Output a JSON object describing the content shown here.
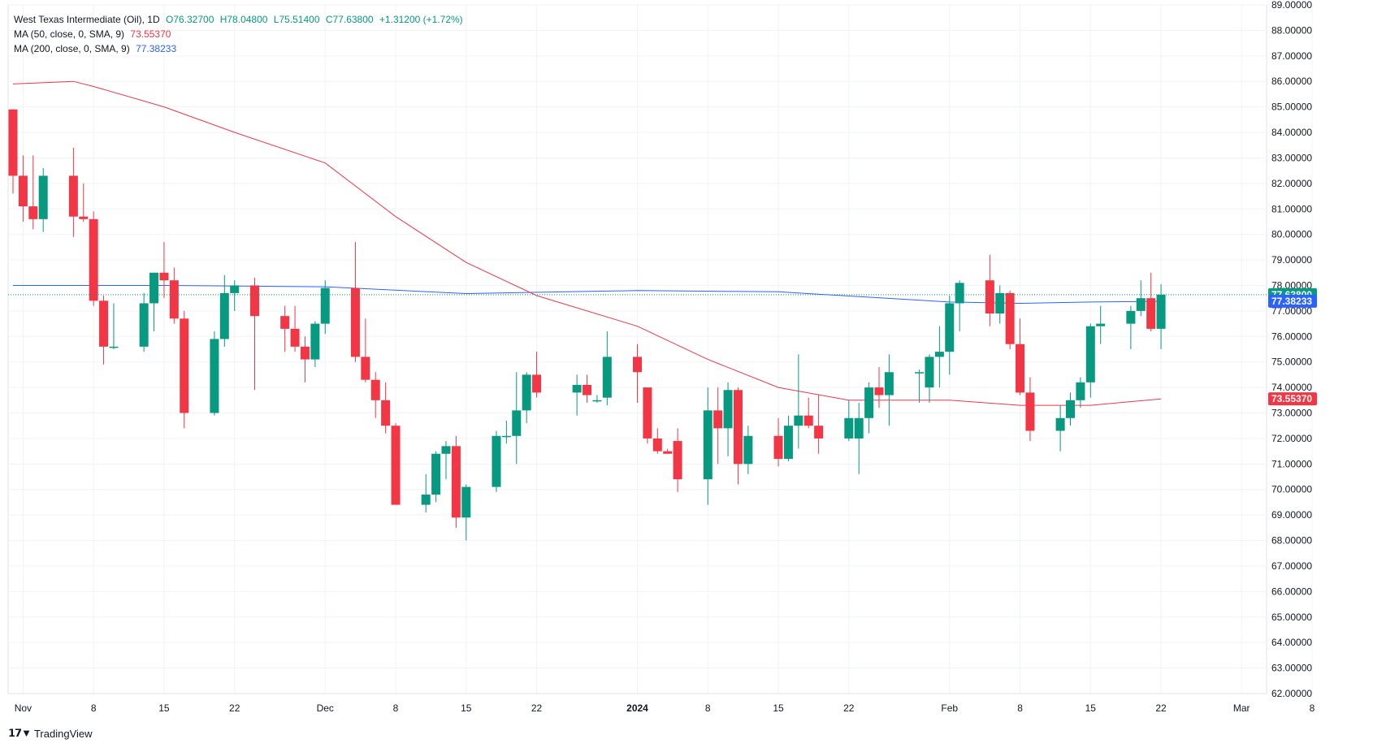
{
  "header": {
    "instrument": "West Texas Intermediate (Oil)",
    "interval": "1D",
    "open": "O76.32700",
    "high": "H78.04800",
    "low": "L75.51400",
    "close": "C77.63800",
    "change": "+1.31200 (+1.72%)",
    "ma50_label": "MA (50, close, 0, SMA, 9)",
    "ma50_value": "73.55370",
    "ma200_label": "MA (200, close, 0, SMA, 9)",
    "ma200_value": "77.38233"
  },
  "footer": {
    "brand": "TradingView"
  },
  "colors": {
    "up": "#089981",
    "down": "#f23645",
    "ma50": "#f23645",
    "ma200": "#2962ff",
    "grid": "#f0f3fa"
  },
  "chart_data": {
    "type": "candlestick",
    "y_axis": {
      "min": 62,
      "max": 89,
      "ticks": [
        "89.00000",
        "88.00000",
        "87.00000",
        "86.00000",
        "85.00000",
        "84.00000",
        "83.00000",
        "82.00000",
        "81.00000",
        "80.00000",
        "79.00000",
        "78.00000",
        "77.00000",
        "76.00000",
        "75.00000",
        "74.00000",
        "73.00000",
        "72.00000",
        "71.00000",
        "70.00000",
        "69.00000",
        "68.00000",
        "67.00000",
        "66.00000",
        "65.00000",
        "64.00000",
        "63.00000",
        "62.00000"
      ]
    },
    "x_axis": {
      "start": "2023-10-31",
      "end": "2024-03-08",
      "ticks": [
        {
          "date": "2023-11-01",
          "label": "Nov",
          "bold": false
        },
        {
          "date": "2023-11-08",
          "label": "8",
          "bold": false
        },
        {
          "date": "2023-11-15",
          "label": "15",
          "bold": false
        },
        {
          "date": "2023-11-22",
          "label": "22",
          "bold": false
        },
        {
          "date": "2023-12-01",
          "label": "Dec",
          "bold": false
        },
        {
          "date": "2023-12-08",
          "label": "8",
          "bold": false
        },
        {
          "date": "2023-12-15",
          "label": "15",
          "bold": false
        },
        {
          "date": "2023-12-22",
          "label": "22",
          "bold": false
        },
        {
          "date": "2024-01-01",
          "label": "2024",
          "bold": true
        },
        {
          "date": "2024-01-08",
          "label": "8",
          "bold": false
        },
        {
          "date": "2024-01-15",
          "label": "15",
          "bold": false
        },
        {
          "date": "2024-01-22",
          "label": "22",
          "bold": false
        },
        {
          "date": "2024-02-01",
          "label": "Feb",
          "bold": false
        },
        {
          "date": "2024-02-08",
          "label": "8",
          "bold": false
        },
        {
          "date": "2024-02-15",
          "label": "15",
          "bold": false
        },
        {
          "date": "2024-02-22",
          "label": "22",
          "bold": false
        },
        {
          "date": "2024-03-01",
          "label": "Mar",
          "bold": false
        },
        {
          "date": "2024-03-08",
          "label": "8",
          "bold": false
        }
      ]
    },
    "price_labels": [
      {
        "value": 77.638,
        "text": "77.63800",
        "color": "#089981"
      },
      {
        "value": 77.38233,
        "text": "77.38233",
        "color": "#2962ff"
      },
      {
        "value": 73.5537,
        "text": "73.55370",
        "color": "#f23645"
      }
    ],
    "last_price": 77.638,
    "candles": [
      {
        "date": "2023-10-31",
        "open": 84.9,
        "high": 84.9,
        "low": 81.6,
        "close": 82.3
      },
      {
        "date": "2023-11-01",
        "open": 82.3,
        "high": 83.1,
        "low": 80.5,
        "close": 81.1
      },
      {
        "date": "2023-11-02",
        "open": 81.1,
        "high": 83.1,
        "low": 80.2,
        "close": 80.6
      },
      {
        "date": "2023-11-03",
        "open": 80.6,
        "high": 82.6,
        "low": 80.1,
        "close": 82.3
      },
      {
        "date": "2023-11-06",
        "open": 82.3,
        "high": 83.4,
        "low": 79.9,
        "close": 80.7
      },
      {
        "date": "2023-11-07",
        "open": 80.7,
        "high": 82.0,
        "low": 80.5,
        "close": 80.6
      },
      {
        "date": "2023-11-08",
        "open": 80.6,
        "high": 80.9,
        "low": 77.2,
        "close": 77.4
      },
      {
        "date": "2023-11-09",
        "open": 77.4,
        "high": 77.6,
        "low": 74.9,
        "close": 75.6
      },
      {
        "date": "2023-11-10",
        "open": 75.6,
        "high": 77.3,
        "low": 75.5,
        "close": 75.6
      },
      {
        "date": "2023-11-13",
        "open": 75.6,
        "high": 77.7,
        "low": 75.4,
        "close": 77.3
      },
      {
        "date": "2023-11-14",
        "open": 77.3,
        "high": 78.5,
        "low": 76.2,
        "close": 78.5
      },
      {
        "date": "2023-11-15",
        "open": 78.5,
        "high": 79.7,
        "low": 77.5,
        "close": 78.2
      },
      {
        "date": "2023-11-16",
        "open": 78.2,
        "high": 78.7,
        "low": 76.5,
        "close": 76.7
      },
      {
        "date": "2023-11-17",
        "open": 76.7,
        "high": 77.0,
        "low": 72.4,
        "close": 73.0
      },
      {
        "date": "2023-11-20",
        "open": 73.0,
        "high": 76.2,
        "low": 72.9,
        "close": 75.9
      },
      {
        "date": "2023-11-21",
        "open": 75.9,
        "high": 78.4,
        "low": 75.6,
        "close": 77.7
      },
      {
        "date": "2023-11-22",
        "open": 77.7,
        "high": 78.2,
        "low": 77.0,
        "close": 78.0
      },
      {
        "date": "2023-11-24",
        "open": 78.0,
        "high": 78.3,
        "low": 73.9,
        "close": 76.8
      },
      {
        "date": "2023-11-27",
        "open": 76.8,
        "high": 77.2,
        "low": 75.4,
        "close": 76.3
      },
      {
        "date": "2023-11-28",
        "open": 76.3,
        "high": 77.2,
        "low": 75.4,
        "close": 75.6
      },
      {
        "date": "2023-11-29",
        "open": 75.6,
        "high": 76.0,
        "low": 74.2,
        "close": 75.1
      },
      {
        "date": "2023-11-30",
        "open": 75.1,
        "high": 76.6,
        "low": 74.8,
        "close": 76.5
      },
      {
        "date": "2023-12-01",
        "open": 76.5,
        "high": 78.2,
        "low": 76.1,
        "close": 77.9
      },
      {
        "date": "2023-12-04",
        "open": 77.9,
        "high": 79.7,
        "low": 75.0,
        "close": 75.2
      },
      {
        "date": "2023-12-05",
        "open": 75.2,
        "high": 76.7,
        "low": 74.2,
        "close": 74.3
      },
      {
        "date": "2023-12-06",
        "open": 74.3,
        "high": 74.6,
        "low": 72.8,
        "close": 73.5
      },
      {
        "date": "2023-12-07",
        "open": 73.5,
        "high": 74.2,
        "low": 72.2,
        "close": 72.5
      },
      {
        "date": "2023-12-08",
        "open": 72.5,
        "high": 72.6,
        "low": 69.4,
        "close": 69.4
      },
      {
        "date": "2023-12-11",
        "open": 69.4,
        "high": 70.6,
        "low": 69.1,
        "close": 69.8
      },
      {
        "date": "2023-12-12",
        "open": 69.8,
        "high": 71.5,
        "low": 69.5,
        "close": 71.4
      },
      {
        "date": "2023-12-13",
        "open": 71.4,
        "high": 71.9,
        "low": 70.4,
        "close": 71.7
      },
      {
        "date": "2023-12-14",
        "open": 71.7,
        "high": 72.1,
        "low": 68.5,
        "close": 68.9
      },
      {
        "date": "2023-12-15",
        "open": 68.9,
        "high": 70.2,
        "low": 68.0,
        "close": 70.1
      },
      {
        "date": "2023-12-18",
        "open": 70.1,
        "high": 72.3,
        "low": 69.9,
        "close": 72.1
      },
      {
        "date": "2023-12-19",
        "open": 72.1,
        "high": 72.7,
        "low": 71.8,
        "close": 72.1
      },
      {
        "date": "2023-12-20",
        "open": 72.1,
        "high": 74.6,
        "low": 71.0,
        "close": 73.1
      },
      {
        "date": "2023-12-21",
        "open": 73.1,
        "high": 74.6,
        "low": 72.6,
        "close": 74.5
      },
      {
        "date": "2023-12-22",
        "open": 74.5,
        "high": 75.4,
        "low": 73.6,
        "close": 73.8
      },
      {
        "date": "2023-12-26",
        "open": 73.8,
        "high": 74.5,
        "low": 72.9,
        "close": 74.1
      },
      {
        "date": "2023-12-27",
        "open": 74.1,
        "high": 74.5,
        "low": 73.4,
        "close": 73.7
      },
      {
        "date": "2023-12-28",
        "open": 73.5,
        "high": 73.7,
        "low": 73.4,
        "close": 73.5
      },
      {
        "date": "2023-12-29",
        "open": 73.6,
        "high": 76.2,
        "low": 73.3,
        "close": 75.2
      },
      {
        "date": "2024-01-01",
        "open": 75.2,
        "high": 75.7,
        "low": 73.4,
        "close": 74.6
      },
      {
        "date": "2024-01-02",
        "open": 74.0,
        "high": 74.0,
        "low": 71.8,
        "close": 72.0
      },
      {
        "date": "2024-01-03",
        "open": 72.0,
        "high": 72.4,
        "low": 71.4,
        "close": 71.5
      },
      {
        "date": "2024-01-04",
        "open": 71.5,
        "high": 71.6,
        "low": 71.4,
        "close": 71.4
      },
      {
        "date": "2024-01-05",
        "open": 71.9,
        "high": 72.4,
        "low": 69.9,
        "close": 70.4
      },
      {
        "date": "2024-01-08",
        "open": 70.4,
        "high": 74.0,
        "low": 69.4,
        "close": 73.1
      },
      {
        "date": "2024-01-09",
        "open": 73.1,
        "high": 74.0,
        "low": 71.0,
        "close": 72.4
      },
      {
        "date": "2024-01-10",
        "open": 72.4,
        "high": 74.2,
        "low": 71.3,
        "close": 73.9
      },
      {
        "date": "2024-01-11",
        "open": 73.9,
        "high": 74.0,
        "low": 70.2,
        "close": 71.0
      },
      {
        "date": "2024-01-12",
        "open": 71.0,
        "high": 72.5,
        "low": 70.6,
        "close": 72.1
      },
      {
        "date": "2024-01-15",
        "open": 72.1,
        "high": 72.8,
        "low": 70.9,
        "close": 71.2
      },
      {
        "date": "2024-01-16",
        "open": 71.2,
        "high": 72.9,
        "low": 71.1,
        "close": 72.5
      },
      {
        "date": "2024-01-17",
        "open": 72.5,
        "high": 75.3,
        "low": 71.6,
        "close": 72.9
      },
      {
        "date": "2024-01-18",
        "open": 72.9,
        "high": 73.6,
        "low": 72.4,
        "close": 72.5
      },
      {
        "date": "2024-01-19",
        "open": 72.5,
        "high": 73.7,
        "low": 71.4,
        "close": 72.0
      },
      {
        "date": "2024-01-22",
        "open": 72.0,
        "high": 73.5,
        "low": 71.9,
        "close": 72.8
      },
      {
        "date": "2024-01-23",
        "open": 72.0,
        "high": 73.4,
        "low": 70.6,
        "close": 72.8
      },
      {
        "date": "2024-01-24",
        "open": 72.8,
        "high": 74.2,
        "low": 72.2,
        "close": 74.0
      },
      {
        "date": "2024-01-25",
        "open": 74.0,
        "high": 74.8,
        "low": 73.2,
        "close": 73.7
      },
      {
        "date": "2024-01-26",
        "open": 73.7,
        "high": 75.3,
        "low": 72.5,
        "close": 74.6
      },
      {
        "date": "2024-01-29",
        "open": 74.6,
        "high": 74.7,
        "low": 73.4,
        "close": 74.6
      },
      {
        "date": "2024-01-30",
        "open": 74.0,
        "high": 75.3,
        "low": 73.4,
        "close": 75.2
      },
      {
        "date": "2024-01-31",
        "open": 75.2,
        "high": 76.4,
        "low": 74.0,
        "close": 75.4
      },
      {
        "date": "2024-02-01",
        "open": 75.4,
        "high": 77.6,
        "low": 74.5,
        "close": 77.3
      },
      {
        "date": "2024-02-02",
        "open": 77.3,
        "high": 78.2,
        "low": 76.2,
        "close": 78.1
      },
      {
        "date": "2024-02-05",
        "open": 78.2,
        "high": 79.2,
        "low": 76.4,
        "close": 76.9
      },
      {
        "date": "2024-02-06",
        "open": 76.9,
        "high": 78.0,
        "low": 76.5,
        "close": 77.7
      },
      {
        "date": "2024-02-07",
        "open": 77.7,
        "high": 77.8,
        "low": 75.5,
        "close": 75.7
      },
      {
        "date": "2024-02-08",
        "open": 75.7,
        "high": 76.7,
        "low": 73.7,
        "close": 73.8
      },
      {
        "date": "2024-02-09",
        "open": 73.8,
        "high": 74.4,
        "low": 71.9,
        "close": 72.3
      },
      {
        "date": "2024-02-12",
        "open": 72.3,
        "high": 73.3,
        "low": 71.5,
        "close": 72.8
      },
      {
        "date": "2024-02-13",
        "open": 72.8,
        "high": 73.8,
        "low": 72.5,
        "close": 73.5
      },
      {
        "date": "2024-02-14",
        "open": 73.5,
        "high": 74.4,
        "low": 73.2,
        "close": 74.2
      },
      {
        "date": "2024-02-15",
        "open": 74.2,
        "high": 76.5,
        "low": 73.6,
        "close": 76.4
      },
      {
        "date": "2024-02-16",
        "open": 76.4,
        "high": 77.2,
        "low": 75.7,
        "close": 76.5
      },
      {
        "date": "2024-02-19",
        "open": 76.5,
        "high": 77.2,
        "low": 75.5,
        "close": 77.0
      },
      {
        "date": "2024-02-20",
        "open": 77.0,
        "high": 78.2,
        "low": 76.8,
        "close": 77.5
      },
      {
        "date": "2024-02-21",
        "open": 77.5,
        "high": 78.5,
        "low": 76.2,
        "close": 76.3
      },
      {
        "date": "2024-02-22",
        "open": 76.3,
        "high": 78.05,
        "low": 75.5,
        "close": 77.64
      }
    ],
    "ma50": [
      {
        "date": "2023-10-31",
        "value": 85.9
      },
      {
        "date": "2023-11-06",
        "value": 86.0
      },
      {
        "date": "2023-11-08",
        "value": 85.8
      },
      {
        "date": "2023-11-15",
        "value": 85.0
      },
      {
        "date": "2023-11-22",
        "value": 84.0
      },
      {
        "date": "2023-12-01",
        "value": 82.8
      },
      {
        "date": "2023-12-08",
        "value": 80.7
      },
      {
        "date": "2023-12-15",
        "value": 78.9
      },
      {
        "date": "2023-12-22",
        "value": 77.6
      },
      {
        "date": "2024-01-01",
        "value": 76.4
      },
      {
        "date": "2024-01-08",
        "value": 75.1
      },
      {
        "date": "2024-01-15",
        "value": 74.0
      },
      {
        "date": "2024-01-22",
        "value": 73.5
      },
      {
        "date": "2024-02-01",
        "value": 73.5
      },
      {
        "date": "2024-02-08",
        "value": 73.3
      },
      {
        "date": "2024-02-15",
        "value": 73.3
      },
      {
        "date": "2024-02-22",
        "value": 73.55
      }
    ],
    "ma200": [
      {
        "date": "2023-10-31",
        "value": 78.0
      },
      {
        "date": "2023-11-15",
        "value": 78.0
      },
      {
        "date": "2023-12-01",
        "value": 77.95
      },
      {
        "date": "2023-12-15",
        "value": 77.68
      },
      {
        "date": "2024-01-01",
        "value": 77.8
      },
      {
        "date": "2024-01-15",
        "value": 77.75
      },
      {
        "date": "2024-02-01",
        "value": 77.35
      },
      {
        "date": "2024-02-08",
        "value": 77.3
      },
      {
        "date": "2024-02-15",
        "value": 77.35
      },
      {
        "date": "2024-02-22",
        "value": 77.38
      }
    ]
  }
}
